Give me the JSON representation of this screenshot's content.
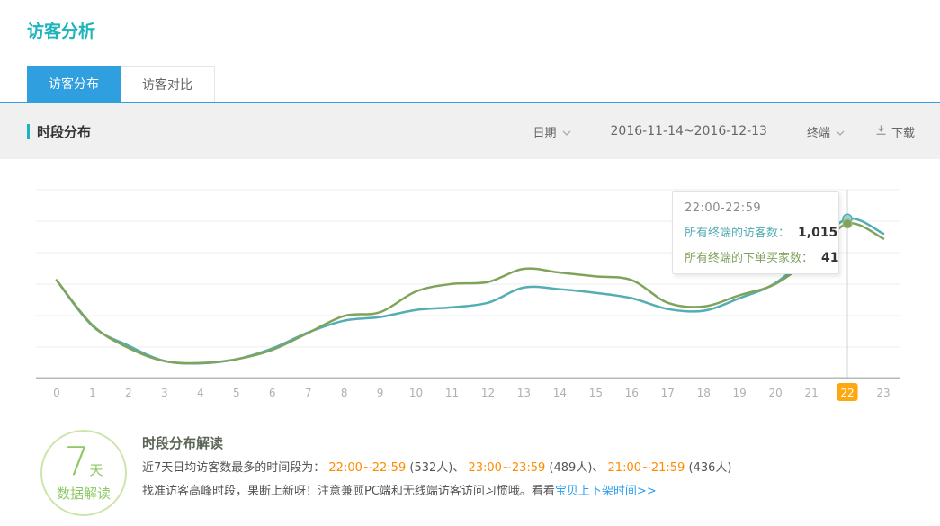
{
  "page_title": "访客分析",
  "colors": {
    "accent_teal": "#1fb4bb",
    "tab_blue": "#2f9fe0",
    "time": "#ff8b00",
    "link": "#2b9ff0",
    "badge_green": "#8cc965",
    "badge_border": "#cde5ad",
    "highlight_orange": "#ffa70f"
  },
  "tabs": [
    {
      "label": "访客分布",
      "active": true
    },
    {
      "label": "访客对比",
      "active": false
    }
  ],
  "toolbar": {
    "section_title": "时段分布",
    "date_label": "日期",
    "date_range": "2016-11-14~2016-12-13",
    "terminal_label": "终端",
    "download_label": "下载"
  },
  "icons": {
    "chevron_down": "v-shape chevron, gray",
    "download": "down-arrow above baseline, gray"
  },
  "chart_data": {
    "type": "line",
    "title": "时段分布",
    "xlabel": "hour of day",
    "ylabel": "",
    "grid": true,
    "legend_position": "none",
    "x": [
      "0",
      "1",
      "2",
      "3",
      "4",
      "5",
      "6",
      "7",
      "8",
      "9",
      "10",
      "11",
      "12",
      "13",
      "14",
      "15",
      "16",
      "17",
      "18",
      "19",
      "20",
      "21",
      "22",
      "23"
    ],
    "series": [
      {
        "name": "所有终端的访客数",
        "color": "#53aeb3",
        "axis_max": 1200,
        "values": [
          623,
          331,
          206,
          109,
          94,
          120,
          189,
          291,
          366,
          389,
          434,
          451,
          480,
          577,
          566,
          543,
          509,
          440,
          429,
          509,
          606,
          800,
          1015,
          920
        ]
      },
      {
        "name": "所有终端的下单买家数",
        "color": "#80a35c",
        "axis_max": 50,
        "values": [
          26,
          14,
          8,
          4.5,
          4,
          5,
          7.5,
          12,
          16.5,
          17.5,
          23,
          25,
          25.5,
          29,
          28,
          27,
          26,
          20,
          19,
          22,
          25,
          32,
          41,
          37
        ]
      }
    ],
    "highlight_hour": 22,
    "highlight_color": "#ffa70f",
    "tooltip": {
      "title": "22:00-22:59",
      "rows": [
        {
          "label": "所有终端的访客数：",
          "value": "1,015"
        },
        {
          "label": "所有终端的下单买家数：",
          "value": "41"
        }
      ]
    }
  },
  "insight": {
    "badge_num": "7",
    "badge_suffix": "天",
    "badge_bottom": "数据解读",
    "heading": "时段分布解读",
    "line1_segments": [
      {
        "t": "近7天日均访客数最多的时间段为： ",
        "s": "normal"
      },
      {
        "t": "22:00~22:59",
        "s": "time"
      },
      {
        "t": " (532人)、 ",
        "s": "normal"
      },
      {
        "t": "23:00~23:59",
        "s": "time"
      },
      {
        "t": " (489人)、 ",
        "s": "normal"
      },
      {
        "t": "21:00~21:59",
        "s": "time"
      },
      {
        "t": " (436人)",
        "s": "normal"
      }
    ],
    "line2_segments": [
      {
        "t": "找准访客高峰时段，果断上新呀！注意兼顾PC端和无线端访客访问习惯哦。看看",
        "s": "normal"
      },
      {
        "t": "宝贝上下架时间>>",
        "s": "link"
      }
    ]
  }
}
